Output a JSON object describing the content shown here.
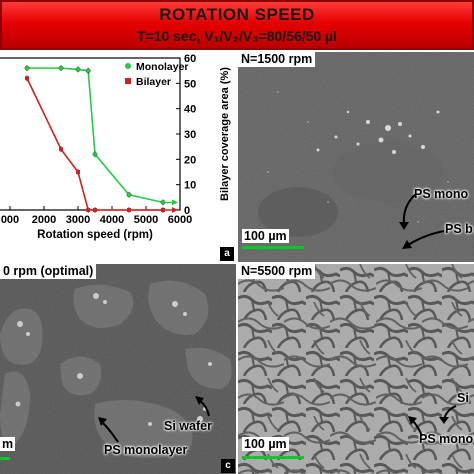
{
  "banner": {
    "title": "ROTATION SPEED",
    "subtitle": "T=10 sec, V₁/V₂/V₃=80/56/50 µl",
    "color": "#e60000"
  },
  "chart_data": {
    "type": "line",
    "xlabel": "Rotation speed (rpm)",
    "ylabel": "Bilayer coverage area (%)",
    "xlim": [
      0,
      6000
    ],
    "ylim": [
      0,
      60
    ],
    "xticks": [
      "000",
      "2000",
      "3000",
      "4000",
      "5000",
      "6000"
    ],
    "yticks": [
      "0",
      "10",
      "20",
      "30",
      "40",
      "50",
      "60"
    ],
    "legend_position": "top-right",
    "series": [
      {
        "name": "Monolayer",
        "color": "#22cc44",
        "x": [
          1500,
          2500,
          3000,
          3300,
          3500,
          4500,
          5500
        ],
        "y": [
          56,
          56,
          55.5,
          55,
          22,
          6,
          3
        ]
      },
      {
        "name": "Bilayer",
        "color": "#cc2222",
        "x": [
          1500,
          2500,
          3000,
          3300,
          3500,
          4500,
          5500
        ],
        "y": [
          52,
          24,
          15,
          0,
          0,
          0,
          0
        ]
      }
    ],
    "panel_letter": "a"
  },
  "panels": {
    "b": {
      "label": "N=1500 rpm",
      "scale": "100 µm",
      "annotations": [
        "PS mono",
        "PS b"
      ],
      "letter": ""
    },
    "c": {
      "label": "0 rpm (optimal)",
      "scale": "m",
      "annotations": [
        "Si wafer",
        "PS monolayer"
      ],
      "letter": "c"
    },
    "d": {
      "label": "N=5500 rpm",
      "scale": "100 µm",
      "annotations": [
        "Si",
        "PS mono"
      ],
      "letter": ""
    }
  }
}
